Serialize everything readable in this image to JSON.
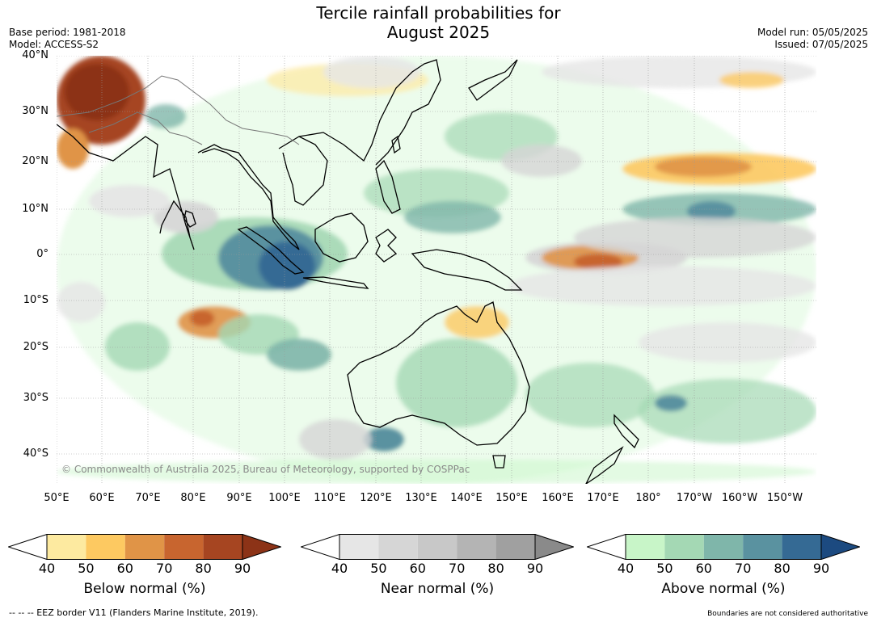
{
  "title_line1": "Tercile rainfall probabilities for",
  "title_line2": "August 2025",
  "base_period": "Base period: 1981-2018",
  "model": "Model: ACCESS-S2",
  "model_run": "Model run: 05/05/2025",
  "issued": "Issued: 07/05/2025",
  "lat_labels": [
    "40°N",
    "30°N",
    "20°N",
    "10°N",
    "0°",
    "10°S",
    "20°S",
    "30°S",
    "40°S"
  ],
  "lon_labels": [
    "50°E",
    "60°E",
    "70°E",
    "80°E",
    "90°E",
    "100°E",
    "110°E",
    "120°E",
    "130°E",
    "140°E",
    "150°E",
    "160°E",
    "170°E",
    "180°",
    "170°W",
    "160°W",
    "150°W"
  ],
  "watermark": "© Commonwealth of Australia 2025, Bureau of Meteorology, supported by COSPPac",
  "colorbars": [
    {
      "label": "Below normal (%)",
      "ticks": [
        "40",
        "50",
        "60",
        "70",
        "80",
        "90"
      ],
      "colors": [
        "#ffffff",
        "#fdeaa0",
        "#fdc961",
        "#e09447",
        "#c8652f",
        "#a64521",
        "#8c3317"
      ]
    },
    {
      "label": "Near normal (%)",
      "ticks": [
        "40",
        "50",
        "60",
        "70",
        "80",
        "90"
      ],
      "colors": [
        "#ffffff",
        "#e6e6e6",
        "#d6d6d6",
        "#c8c8c8",
        "#b4b4b4",
        "#a0a0a0",
        "#8a8a8a"
      ]
    },
    {
      "label": "Above normal (%)",
      "ticks": [
        "40",
        "50",
        "60",
        "70",
        "80",
        "90"
      ],
      "colors": [
        "#ffffff",
        "#c8f5c8",
        "#a4d8b4",
        "#7fb6aa",
        "#5a92a0",
        "#356a94",
        "#1c4a80"
      ]
    }
  ],
  "footer_left": "--  --  -- EEZ border V11 (Flanders Marine Institute, 2019).",
  "footer_right": "Boundaries are not considered authoritative"
}
